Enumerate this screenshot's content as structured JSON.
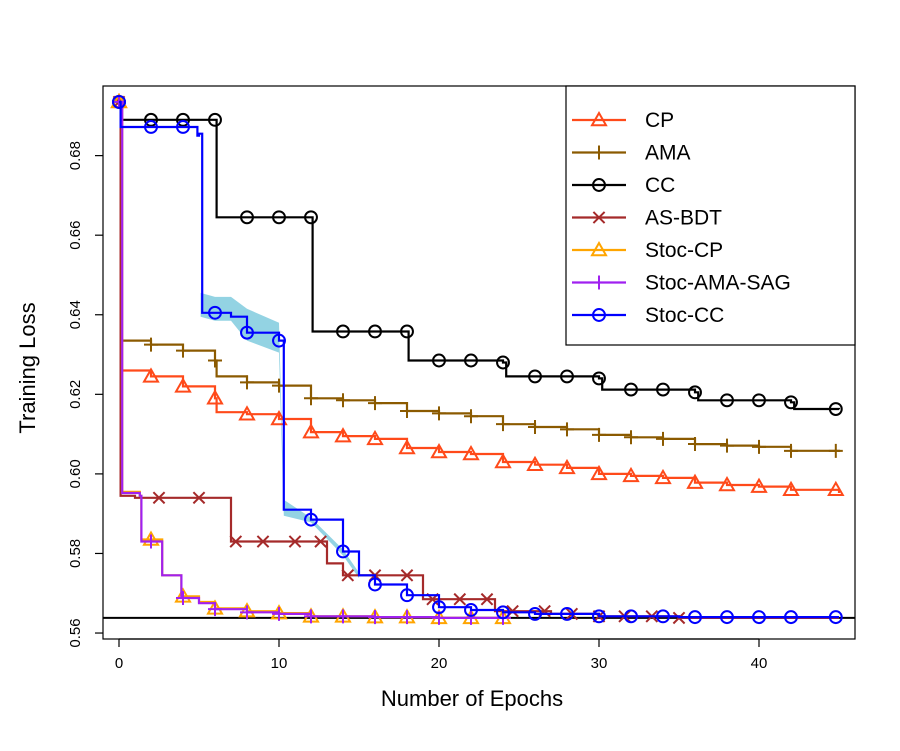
{
  "chart_data": {
    "type": "line",
    "title": "",
    "xlabel": "Number of Epochs",
    "ylabel": "Training Loss",
    "xlim": [
      -1,
      46
    ],
    "ylim": [
      0.5585,
      0.6975
    ],
    "xticks": [
      0,
      10,
      20,
      30,
      40
    ],
    "yticks": [
      0.56,
      0.58,
      0.6,
      0.62,
      0.64,
      0.66,
      0.68
    ],
    "ytick_labels": [
      "0.56",
      "0.58",
      "0.60",
      "0.62",
      "0.64",
      "0.66",
      "0.68"
    ],
    "xtick_labels": [
      "0",
      "10",
      "20",
      "30",
      "40"
    ],
    "reference_line": 0.5638,
    "legend_position": "top-right",
    "series": [
      {
        "name": "CP",
        "color": "#ff4a1a",
        "marker": "triangle",
        "points": [
          [
            0,
            0.6935
          ],
          [
            0.1,
            0.626
          ],
          [
            2,
            0.6245
          ],
          [
            4,
            0.622
          ],
          [
            6,
            0.619
          ],
          [
            6.1,
            0.6155
          ],
          [
            8,
            0.615
          ],
          [
            10,
            0.6138
          ],
          [
            12,
            0.6105
          ],
          [
            14,
            0.6095
          ],
          [
            16,
            0.6088
          ],
          [
            18,
            0.6065
          ],
          [
            20,
            0.6055
          ],
          [
            22,
            0.605
          ],
          [
            24,
            0.603
          ],
          [
            26,
            0.6023
          ],
          [
            28,
            0.6015
          ],
          [
            30,
            0.6
          ],
          [
            32,
            0.5995
          ],
          [
            34,
            0.599
          ],
          [
            36,
            0.5978
          ],
          [
            38,
            0.5972
          ],
          [
            40,
            0.5968
          ],
          [
            42,
            0.596
          ],
          [
            45,
            0.5952
          ]
        ],
        "marker_x": [
          0,
          2,
          4,
          6,
          8,
          10,
          12,
          14,
          16,
          18,
          20,
          22,
          24,
          26,
          28,
          30,
          32,
          34,
          36,
          38,
          40,
          42,
          44.8
        ]
      },
      {
        "name": "AMA",
        "color": "#8b5a00",
        "marker": "plus",
        "points": [
          [
            0,
            0.6935
          ],
          [
            0.1,
            0.6335
          ],
          [
            2,
            0.6325
          ],
          [
            4,
            0.631
          ],
          [
            6,
            0.6285
          ],
          [
            6.1,
            0.6245
          ],
          [
            8,
            0.623
          ],
          [
            10,
            0.6222
          ],
          [
            12,
            0.619
          ],
          [
            14,
            0.6185
          ],
          [
            16,
            0.6178
          ],
          [
            18,
            0.6158
          ],
          [
            20,
            0.6152
          ],
          [
            22,
            0.6145
          ],
          [
            24,
            0.6125
          ],
          [
            26,
            0.6118
          ],
          [
            28,
            0.6112
          ],
          [
            30,
            0.6098
          ],
          [
            32,
            0.6092
          ],
          [
            34,
            0.6088
          ],
          [
            36,
            0.6075
          ],
          [
            38,
            0.6071
          ],
          [
            40,
            0.6068
          ],
          [
            42,
            0.6058
          ],
          [
            45,
            0.6055
          ]
        ],
        "marker_x": [
          0,
          2,
          4,
          6,
          8,
          10,
          12,
          14,
          16,
          18,
          20,
          22,
          24,
          26,
          28,
          30,
          32,
          34,
          36,
          38,
          40,
          42,
          44.8
        ]
      },
      {
        "name": "CC",
        "color": "#000000",
        "marker": "circle",
        "points": [
          [
            0,
            0.6935
          ],
          [
            0.1,
            0.689
          ],
          [
            6,
            0.689
          ],
          [
            6.1,
            0.6645
          ],
          [
            12,
            0.6645
          ],
          [
            12.1,
            0.6358
          ],
          [
            18,
            0.6358
          ],
          [
            18.1,
            0.6285
          ],
          [
            24,
            0.628
          ],
          [
            24.2,
            0.6245
          ],
          [
            30,
            0.624
          ],
          [
            30.2,
            0.6212
          ],
          [
            36,
            0.6205
          ],
          [
            36.2,
            0.6185
          ],
          [
            42,
            0.618
          ],
          [
            42.2,
            0.6163
          ],
          [
            45,
            0.6162
          ]
        ],
        "marker_x": [
          0,
          2,
          4,
          6,
          8,
          10,
          12,
          14,
          16,
          18,
          20,
          22,
          24,
          26,
          28,
          30,
          32,
          34,
          36,
          38,
          40,
          42,
          44.8
        ]
      },
      {
        "name": "AS-BDT",
        "color": "#a52a2a",
        "marker": "x",
        "points": [
          [
            0,
            0.6935
          ],
          [
            0.1,
            0.5945
          ],
          [
            1,
            0.594
          ],
          [
            6.9,
            0.594
          ],
          [
            7,
            0.583
          ],
          [
            12,
            0.583
          ],
          [
            13,
            0.5775
          ],
          [
            14,
            0.5745
          ],
          [
            18,
            0.5745
          ],
          [
            19,
            0.5685
          ],
          [
            23,
            0.5685
          ],
          [
            23.5,
            0.5655
          ],
          [
            27,
            0.5648
          ],
          [
            30,
            0.5642
          ],
          [
            35,
            0.5638
          ],
          [
            45,
            0.5638
          ]
        ],
        "marker_x": [
          0,
          2.5,
          5,
          7.3,
          9,
          11,
          12.6,
          14.3,
          16,
          18,
          19.6,
          21.3,
          23,
          24.6,
          26.6,
          28.3,
          30,
          31.6,
          33.3,
          35
        ]
      },
      {
        "name": "Stoc-CP",
        "color": "#ffa500",
        "marker": "triangle",
        "points": [
          [
            0,
            0.6935
          ],
          [
            0.2,
            0.5955
          ],
          [
            1.3,
            0.5945
          ],
          [
            1.4,
            0.5835
          ],
          [
            2.6,
            0.5835
          ],
          [
            2.7,
            0.5745
          ],
          [
            3.8,
            0.5745
          ],
          [
            3.9,
            0.5692
          ],
          [
            5,
            0.5678
          ],
          [
            6,
            0.5662
          ],
          [
            8,
            0.5655
          ],
          [
            10,
            0.565
          ],
          [
            12,
            0.5642
          ],
          [
            16,
            0.564
          ],
          [
            20,
            0.5638
          ],
          [
            24.5,
            0.5638
          ]
        ],
        "marker_x": [
          0,
          2,
          4,
          6,
          8,
          10,
          12,
          14,
          16,
          18,
          20,
          22,
          24
        ]
      },
      {
        "name": "Stoc-AMA-SAG",
        "color": "#a020f0",
        "marker": "plus",
        "points": [
          [
            0,
            0.6935
          ],
          [
            0.2,
            0.5952
          ],
          [
            1.3,
            0.5945
          ],
          [
            1.4,
            0.583
          ],
          [
            2.6,
            0.583
          ],
          [
            2.7,
            0.5745
          ],
          [
            3.8,
            0.5745
          ],
          [
            3.9,
            0.5688
          ],
          [
            5,
            0.5675
          ],
          [
            6,
            0.566
          ],
          [
            8,
            0.5652
          ],
          [
            10,
            0.5648
          ],
          [
            12,
            0.5642
          ],
          [
            16,
            0.564
          ],
          [
            20,
            0.5638
          ],
          [
            24.5,
            0.5638
          ]
        ],
        "marker_x": [
          0,
          2,
          4,
          6,
          8,
          10,
          12,
          14,
          16,
          18,
          20,
          22,
          24
        ]
      },
      {
        "name": "Stoc-CC",
        "color": "#0000ff",
        "marker": "circle",
        "points": [
          [
            0,
            0.6935
          ],
          [
            0.1,
            0.6872
          ],
          [
            4.9,
            0.685
          ],
          [
            5,
            0.6855
          ],
          [
            5.2,
            0.6405
          ],
          [
            7,
            0.6395
          ],
          [
            8,
            0.6355
          ],
          [
            10,
            0.6335
          ],
          [
            10.3,
            0.591
          ],
          [
            12,
            0.5885
          ],
          [
            14,
            0.5805
          ],
          [
            15,
            0.5745
          ],
          [
            16,
            0.5722
          ],
          [
            18,
            0.5695
          ],
          [
            20,
            0.5665
          ],
          [
            22,
            0.5658
          ],
          [
            24,
            0.5652
          ],
          [
            26,
            0.5648
          ],
          [
            30,
            0.5642
          ],
          [
            35,
            0.564
          ],
          [
            45,
            0.564
          ]
        ],
        "marker_x": [
          0,
          2,
          4,
          6,
          8,
          10,
          12,
          14,
          16,
          18,
          20,
          22,
          24,
          26,
          28,
          30,
          32,
          34,
          36,
          38,
          40,
          42,
          44.8
        ]
      }
    ],
    "band": {
      "color": "#87cee0",
      "series": "Stoc-CC",
      "upper": [
        [
          5.1,
          0.6455
        ],
        [
          6,
          0.6445
        ],
        [
          7,
          0.6445
        ],
        [
          8,
          0.6415
        ],
        [
          10,
          0.638
        ],
        [
          10.3,
          0.5935
        ],
        [
          12,
          0.589
        ],
        [
          14,
          0.581
        ],
        [
          15,
          0.5752
        ]
      ],
      "lower": [
        [
          5.1,
          0.6395
        ],
        [
          6,
          0.6385
        ],
        [
          7,
          0.6385
        ],
        [
          8,
          0.6335
        ],
        [
          10,
          0.6305
        ],
        [
          10.3,
          0.5895
        ],
        [
          12,
          0.5878
        ],
        [
          14,
          0.5795
        ],
        [
          15,
          0.5738
        ]
      ]
    }
  }
}
